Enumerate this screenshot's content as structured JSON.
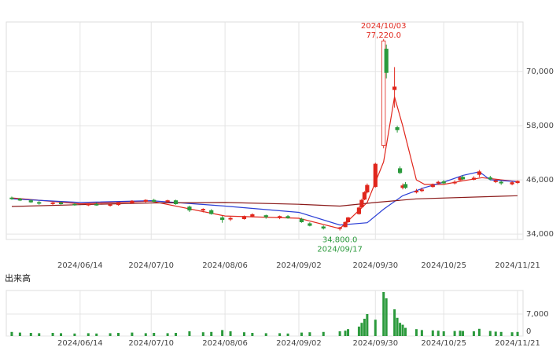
{
  "chart_data": [
    {
      "type": "candlestick",
      "x": [
        "2024/05/20",
        "2024/05/23",
        "2024/05/27",
        "2024/05/30",
        "2024/06/04",
        "2024/06/07",
        "2024/06/12",
        "2024/06/17",
        "2024/06/20",
        "2024/06/25",
        "2024/06/28",
        "2024/07/03",
        "2024/07/08",
        "2024/07/11",
        "2024/07/16",
        "2024/07/19",
        "2024/07/24",
        "2024/07/29",
        "2024/08/01",
        "2024/08/05",
        "2024/08/08",
        "2024/08/13",
        "2024/08/16",
        "2024/08/21",
        "2024/08/26",
        "2024/08/29",
        "2024/09/03",
        "2024/09/06",
        "2024/09/11",
        "2024/09/17",
        "2024/09/19",
        "2024/09/20",
        "2024/09/24",
        "2024/09/25",
        "2024/09/26",
        "2024/09/27",
        "2024/09/30",
        "2024/10/03",
        "2024/10/04",
        "2024/10/07",
        "2024/10/08",
        "2024/10/09",
        "2024/10/10",
        "2024/10/11",
        "2024/10/15",
        "2024/10/17",
        "2024/10/21",
        "2024/10/23",
        "2024/10/25",
        "2024/10/29",
        "2024/10/31",
        "2024/11/01",
        "2024/11/05",
        "2024/11/07",
        "2024/11/11",
        "2024/11/13",
        "2024/11/15",
        "2024/11/19",
        "2024/11/21"
      ],
      "open": [
        42000,
        41800,
        41400,
        41000,
        40800,
        40900,
        40600,
        40500,
        40600,
        40400,
        40500,
        40900,
        41300,
        41500,
        41200,
        41400,
        40000,
        39300,
        39200,
        37600,
        37300,
        37400,
        38000,
        38100,
        37700,
        37900,
        37300,
        36300,
        35600,
        35200,
        35600,
        36700,
        38500,
        40000,
        41700,
        43300,
        44500,
        53600,
        75000,
        66000,
        57600,
        48500,
        44300,
        45000,
        43300,
        43600,
        44500,
        45300,
        45600,
        45300,
        46000,
        46600,
        46100,
        47200,
        46500,
        45600,
        45500,
        45100,
        45400
      ],
      "high": [
        42300,
        42000,
        41700,
        41300,
        41100,
        41200,
        40900,
        40800,
        41000,
        40700,
        41000,
        41500,
        41700,
        41800,
        41600,
        41600,
        40300,
        39700,
        39500,
        38000,
        37800,
        38100,
        38600,
        38300,
        38100,
        38200,
        37600,
        36600,
        35900,
        35600,
        36800,
        37800,
        40100,
        41800,
        43500,
        45200,
        49800,
        77220,
        76000,
        71000,
        58000,
        49000,
        45200,
        45500,
        44000,
        44300,
        45200,
        45800,
        46000,
        45900,
        46800,
        47000,
        46800,
        48200,
        46900,
        46200,
        45800,
        45700,
        45900
      ],
      "low": [
        41600,
        41300,
        40900,
        40500,
        40400,
        40500,
        40300,
        40200,
        40300,
        40100,
        40300,
        40700,
        41000,
        41100,
        40900,
        40500,
        38900,
        38800,
        38300,
        36500,
        36900,
        37200,
        37700,
        37400,
        37300,
        37400,
        36500,
        35700,
        35000,
        34800,
        35500,
        36500,
        38300,
        39700,
        41500,
        43000,
        44300,
        53000,
        68500,
        62000,
        56500,
        47300,
        43900,
        44000,
        43000,
        43300,
        44300,
        45000,
        45100,
        45000,
        45800,
        46000,
        45900,
        46600,
        45900,
        45300,
        44900,
        44800,
        45100
      ],
      "close": [
        41800,
        41500,
        41100,
        40800,
        40900,
        40700,
        40500,
        40600,
        40400,
        40500,
        40900,
        41300,
        41500,
        41200,
        41400,
        40700,
        39300,
        39500,
        38500,
        37200,
        37500,
        37900,
        38300,
        37800,
        37900,
        37600,
        36700,
        35900,
        35300,
        35400,
        36600,
        37600,
        39800,
        41500,
        43200,
        44800,
        49500,
        76800,
        69800,
        66600,
        57100,
        47600,
        44700,
        44300,
        43500,
        43800,
        44800,
        45500,
        45300,
        45500,
        46500,
        46200,
        46400,
        47800,
        46200,
        45800,
        45300,
        45400,
        45700
      ],
      "up_color": "#e0261c",
      "down_color": "#2b9a3c",
      "series": [
        {
          "color": "#e0261c",
          "x": [
            "2024/05/20",
            "2024/06/14",
            "2024/07/10",
            "2024/08/06",
            "2024/09/02",
            "2024/09/17",
            "2024/09/27",
            "2024/10/03",
            "2024/10/07",
            "2024/10/10",
            "2024/10/15",
            "2024/10/18",
            "2024/10/25",
            "2024/11/01",
            "2024/11/08",
            "2024/11/21"
          ],
          "values": [
            42000,
            40700,
            41300,
            38000,
            37500,
            35200,
            41000,
            50000,
            64400,
            58000,
            46000,
            45000,
            45000,
            45800,
            46500,
            45600
          ]
        },
        {
          "color": "#2b3fd6",
          "x": [
            "2024/05/20",
            "2024/06/14",
            "2024/07/10",
            "2024/08/06",
            "2024/09/02",
            "2024/09/17",
            "2024/09/27",
            "2024/10/03",
            "2024/10/10",
            "2024/10/18",
            "2024/10/25",
            "2024/11/01",
            "2024/11/07",
            "2024/11/11",
            "2024/11/21"
          ],
          "values": [
            41800,
            41000,
            41400,
            40200,
            38800,
            36000,
            36500,
            39500,
            42500,
            44300,
            45500,
            47000,
            47800,
            46000,
            45600
          ]
        },
        {
          "color": "#8b1a1a",
          "x": [
            "2024/05/20",
            "2024/06/14",
            "2024/07/10",
            "2024/08/06",
            "2024/09/02",
            "2024/09/17",
            "2024/09/30",
            "2024/10/15",
            "2024/11/21"
          ],
          "values": [
            40100,
            40500,
            40900,
            41000,
            40600,
            40200,
            41000,
            41800,
            42500
          ]
        }
      ],
      "annotations": [
        {
          "date": "2024/10/03",
          "label": "77,220.0",
          "value": 77220,
          "color": "#e0261c",
          "position": "top"
        },
        {
          "date": "2024/09/17",
          "label": "34,800.0",
          "value": 34800,
          "color": "#2b9a3c",
          "position": "bottom"
        }
      ],
      "xlim": [
        "2024/05/18",
        "2024/11/23"
      ],
      "xticks": [
        "2024/06/14",
        "2024/07/10",
        "2024/08/06",
        "2024/09/02",
        "2024/09/30",
        "2024/10/25",
        "2024/11/21"
      ],
      "ylim": [
        32800,
        81000
      ],
      "yticks": [
        {
          "value": 34000,
          "label": "34,000"
        },
        {
          "value": 46000,
          "label": "46,000"
        },
        {
          "value": 58000,
          "label": "58,000"
        },
        {
          "value": 70000,
          "label": "70,000"
        }
      ],
      "grid": true
    },
    {
      "type": "bar",
      "title": "出来高",
      "x": [
        "2024/05/20",
        "2024/05/23",
        "2024/05/27",
        "2024/05/30",
        "2024/06/04",
        "2024/06/07",
        "2024/06/12",
        "2024/06/17",
        "2024/06/20",
        "2024/06/25",
        "2024/06/28",
        "2024/07/03",
        "2024/07/08",
        "2024/07/11",
        "2024/07/16",
        "2024/07/19",
        "2024/07/24",
        "2024/07/29",
        "2024/08/01",
        "2024/08/05",
        "2024/08/08",
        "2024/08/13",
        "2024/08/16",
        "2024/08/21",
        "2024/08/26",
        "2024/08/29",
        "2024/09/03",
        "2024/09/06",
        "2024/09/11",
        "2024/09/17",
        "2024/09/19",
        "2024/09/20",
        "2024/09/24",
        "2024/09/25",
        "2024/09/26",
        "2024/09/27",
        "2024/09/30",
        "2024/10/03",
        "2024/10/04",
        "2024/10/07",
        "2024/10/08",
        "2024/10/09",
        "2024/10/10",
        "2024/10/11",
        "2024/10/15",
        "2024/10/17",
        "2024/10/21",
        "2024/10/23",
        "2024/10/25",
        "2024/10/29",
        "2024/10/31",
        "2024/11/01",
        "2024/11/05",
        "2024/11/07",
        "2024/11/11",
        "2024/11/13",
        "2024/11/15",
        "2024/11/19",
        "2024/11/21"
      ],
      "values": [
        1300,
        1100,
        1000,
        900,
        1000,
        900,
        800,
        900,
        800,
        900,
        1000,
        1100,
        900,
        1000,
        900,
        1000,
        1500,
        1200,
        1300,
        1900,
        1500,
        1200,
        1000,
        900,
        900,
        800,
        1100,
        1200,
        1300,
        1500,
        1700,
        2200,
        3000,
        4200,
        5500,
        7000,
        5200,
        14000,
        12000,
        8500,
        5800,
        4200,
        3600,
        2600,
        2200,
        1900,
        1800,
        1700,
        1500,
        1600,
        1700,
        1600,
        1500,
        2300,
        1600,
        1400,
        1300,
        1200,
        1300
      ],
      "color": "#2b9a3c",
      "xlim": [
        "2024/05/18",
        "2024/11/23"
      ],
      "xticks": [
        "2024/06/14",
        "2024/07/10",
        "2024/08/06",
        "2024/09/02",
        "2024/09/30",
        "2024/10/25",
        "2024/11/21"
      ],
      "ylim": [
        0,
        14500
      ],
      "yticks": [
        0,
        {
          "value": 7000,
          "label": "7,000"
        }
      ],
      "grid": true
    }
  ]
}
